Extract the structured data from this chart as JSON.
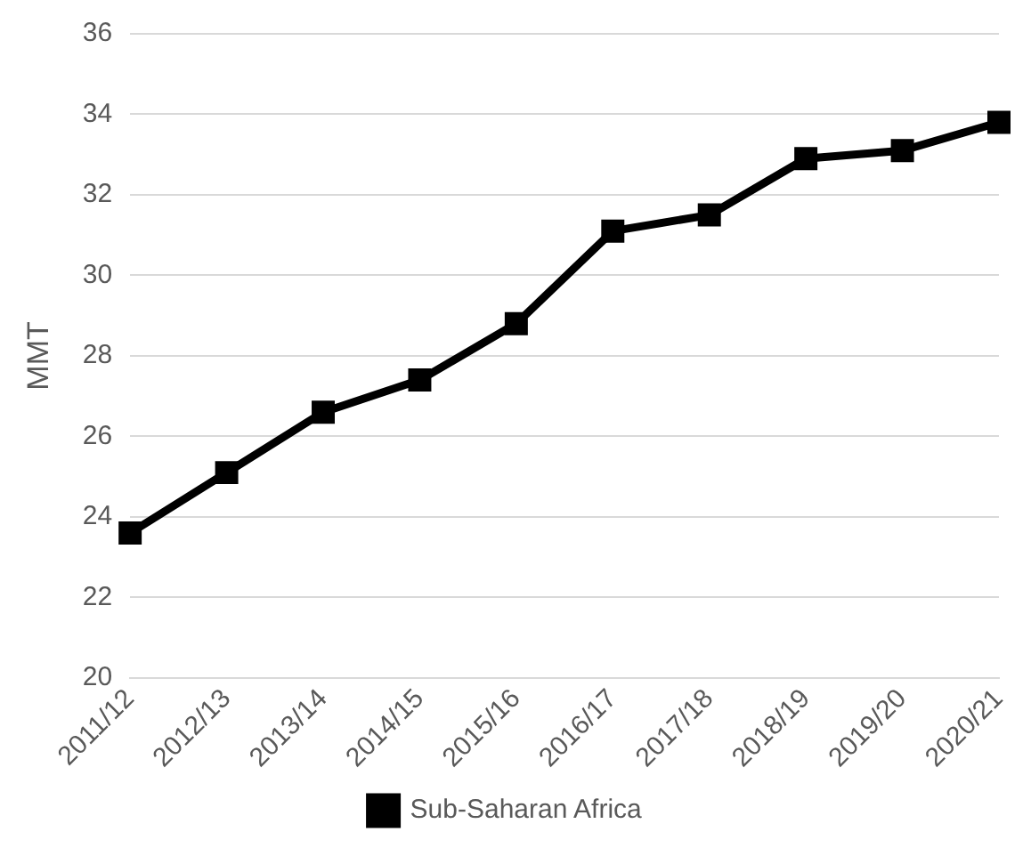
{
  "chart_data": {
    "type": "line",
    "ylabel": "MMT",
    "categories": [
      "2011/12",
      "2012/13",
      "2013/14",
      "2014/15",
      "2015/16",
      "2016/17",
      "2017/18",
      "2018/19",
      "2019/20",
      "2020/21"
    ],
    "series": [
      {
        "name": "Sub-Saharan Africa",
        "color": "#000000",
        "values": [
          23.6,
          25.1,
          26.6,
          27.4,
          28.8,
          31.1,
          31.5,
          32.9,
          33.1,
          33.8
        ]
      }
    ],
    "ylim": [
      20,
      36
    ],
    "yticks": [
      20,
      22,
      24,
      26,
      28,
      30,
      32,
      34,
      36
    ],
    "grid": "y",
    "legend": "bottom",
    "marker": "square",
    "line_style": "solid"
  }
}
